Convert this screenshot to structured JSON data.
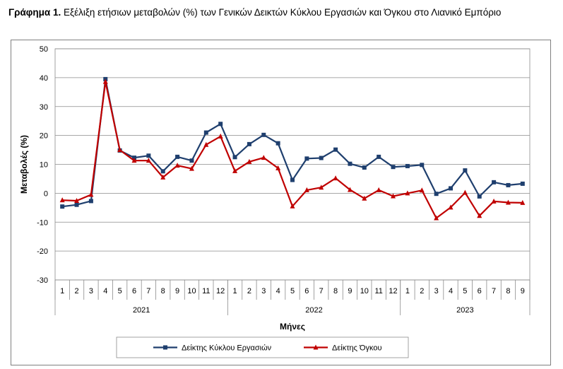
{
  "caption": {
    "label": "Γράφημα 1.",
    "text": "Εξέλιξη ετήσιων μεταβολών (%) των Γενικών Δεικτών Κύκλου Εργασιών και Όγκου στο Λιανικό Εμπόριο"
  },
  "chart_data": {
    "type": "line",
    "title": "Εξέλιξη ετήσιων μεταβολών (%) των Γενικών Δεικτών Κύκλου Εργασιών και Όγκου στο Λιανικό Εμπόριο",
    "xlabel": "Μήνες",
    "ylabel": "Μεταβολές (%)",
    "ylim": [
      -30,
      50
    ],
    "yticks": [
      -30,
      -20,
      -10,
      0,
      10,
      20,
      30,
      40,
      50
    ],
    "grid": true,
    "legend_position": "bottom",
    "categories": [
      "1",
      "2",
      "3",
      "4",
      "5",
      "6",
      "7",
      "8",
      "9",
      "10",
      "11",
      "12",
      "1",
      "2",
      "3",
      "4",
      "5",
      "6",
      "7",
      "8",
      "9",
      "10",
      "11",
      "12",
      "1",
      "2",
      "3",
      "4",
      "5",
      "6",
      "7",
      "8",
      "9"
    ],
    "year_groups": [
      {
        "year": "2021",
        "count": 12
      },
      {
        "year": "2022",
        "count": 12
      },
      {
        "year": "2023",
        "count": 9
      }
    ],
    "series": [
      {
        "name": "Δείκτης Κύκλου Εργασιών",
        "color": "#1f3f6e",
        "marker": "square",
        "values": [
          -4.6,
          -4.0,
          -2.7,
          39.5,
          14.8,
          12.3,
          13.0,
          7.6,
          12.6,
          11.3,
          21.0,
          24.0,
          12.5,
          17.0,
          20.2,
          17.3,
          4.6,
          12.0,
          12.2,
          15.1,
          10.2,
          8.9,
          12.6,
          9.1,
          9.4,
          9.8,
          -0.2,
          1.7,
          7.9,
          -1.1,
          3.8,
          2.8,
          3.3
        ]
      },
      {
        "name": "Δείκτης Όγκου",
        "color": "#c00000",
        "marker": "triangle",
        "values": [
          -2.4,
          -2.6,
          -0.5,
          38.6,
          15.0,
          11.3,
          11.3,
          5.5,
          9.6,
          8.5,
          16.8,
          19.7,
          7.7,
          10.9,
          12.3,
          8.7,
          -4.5,
          1.1,
          2.0,
          5.2,
          1.2,
          -1.8,
          1.1,
          -1.0,
          0.0,
          1.0,
          -8.6,
          -4.9,
          0.2,
          -7.8,
          -2.8,
          -3.2,
          -3.3
        ]
      }
    ]
  }
}
